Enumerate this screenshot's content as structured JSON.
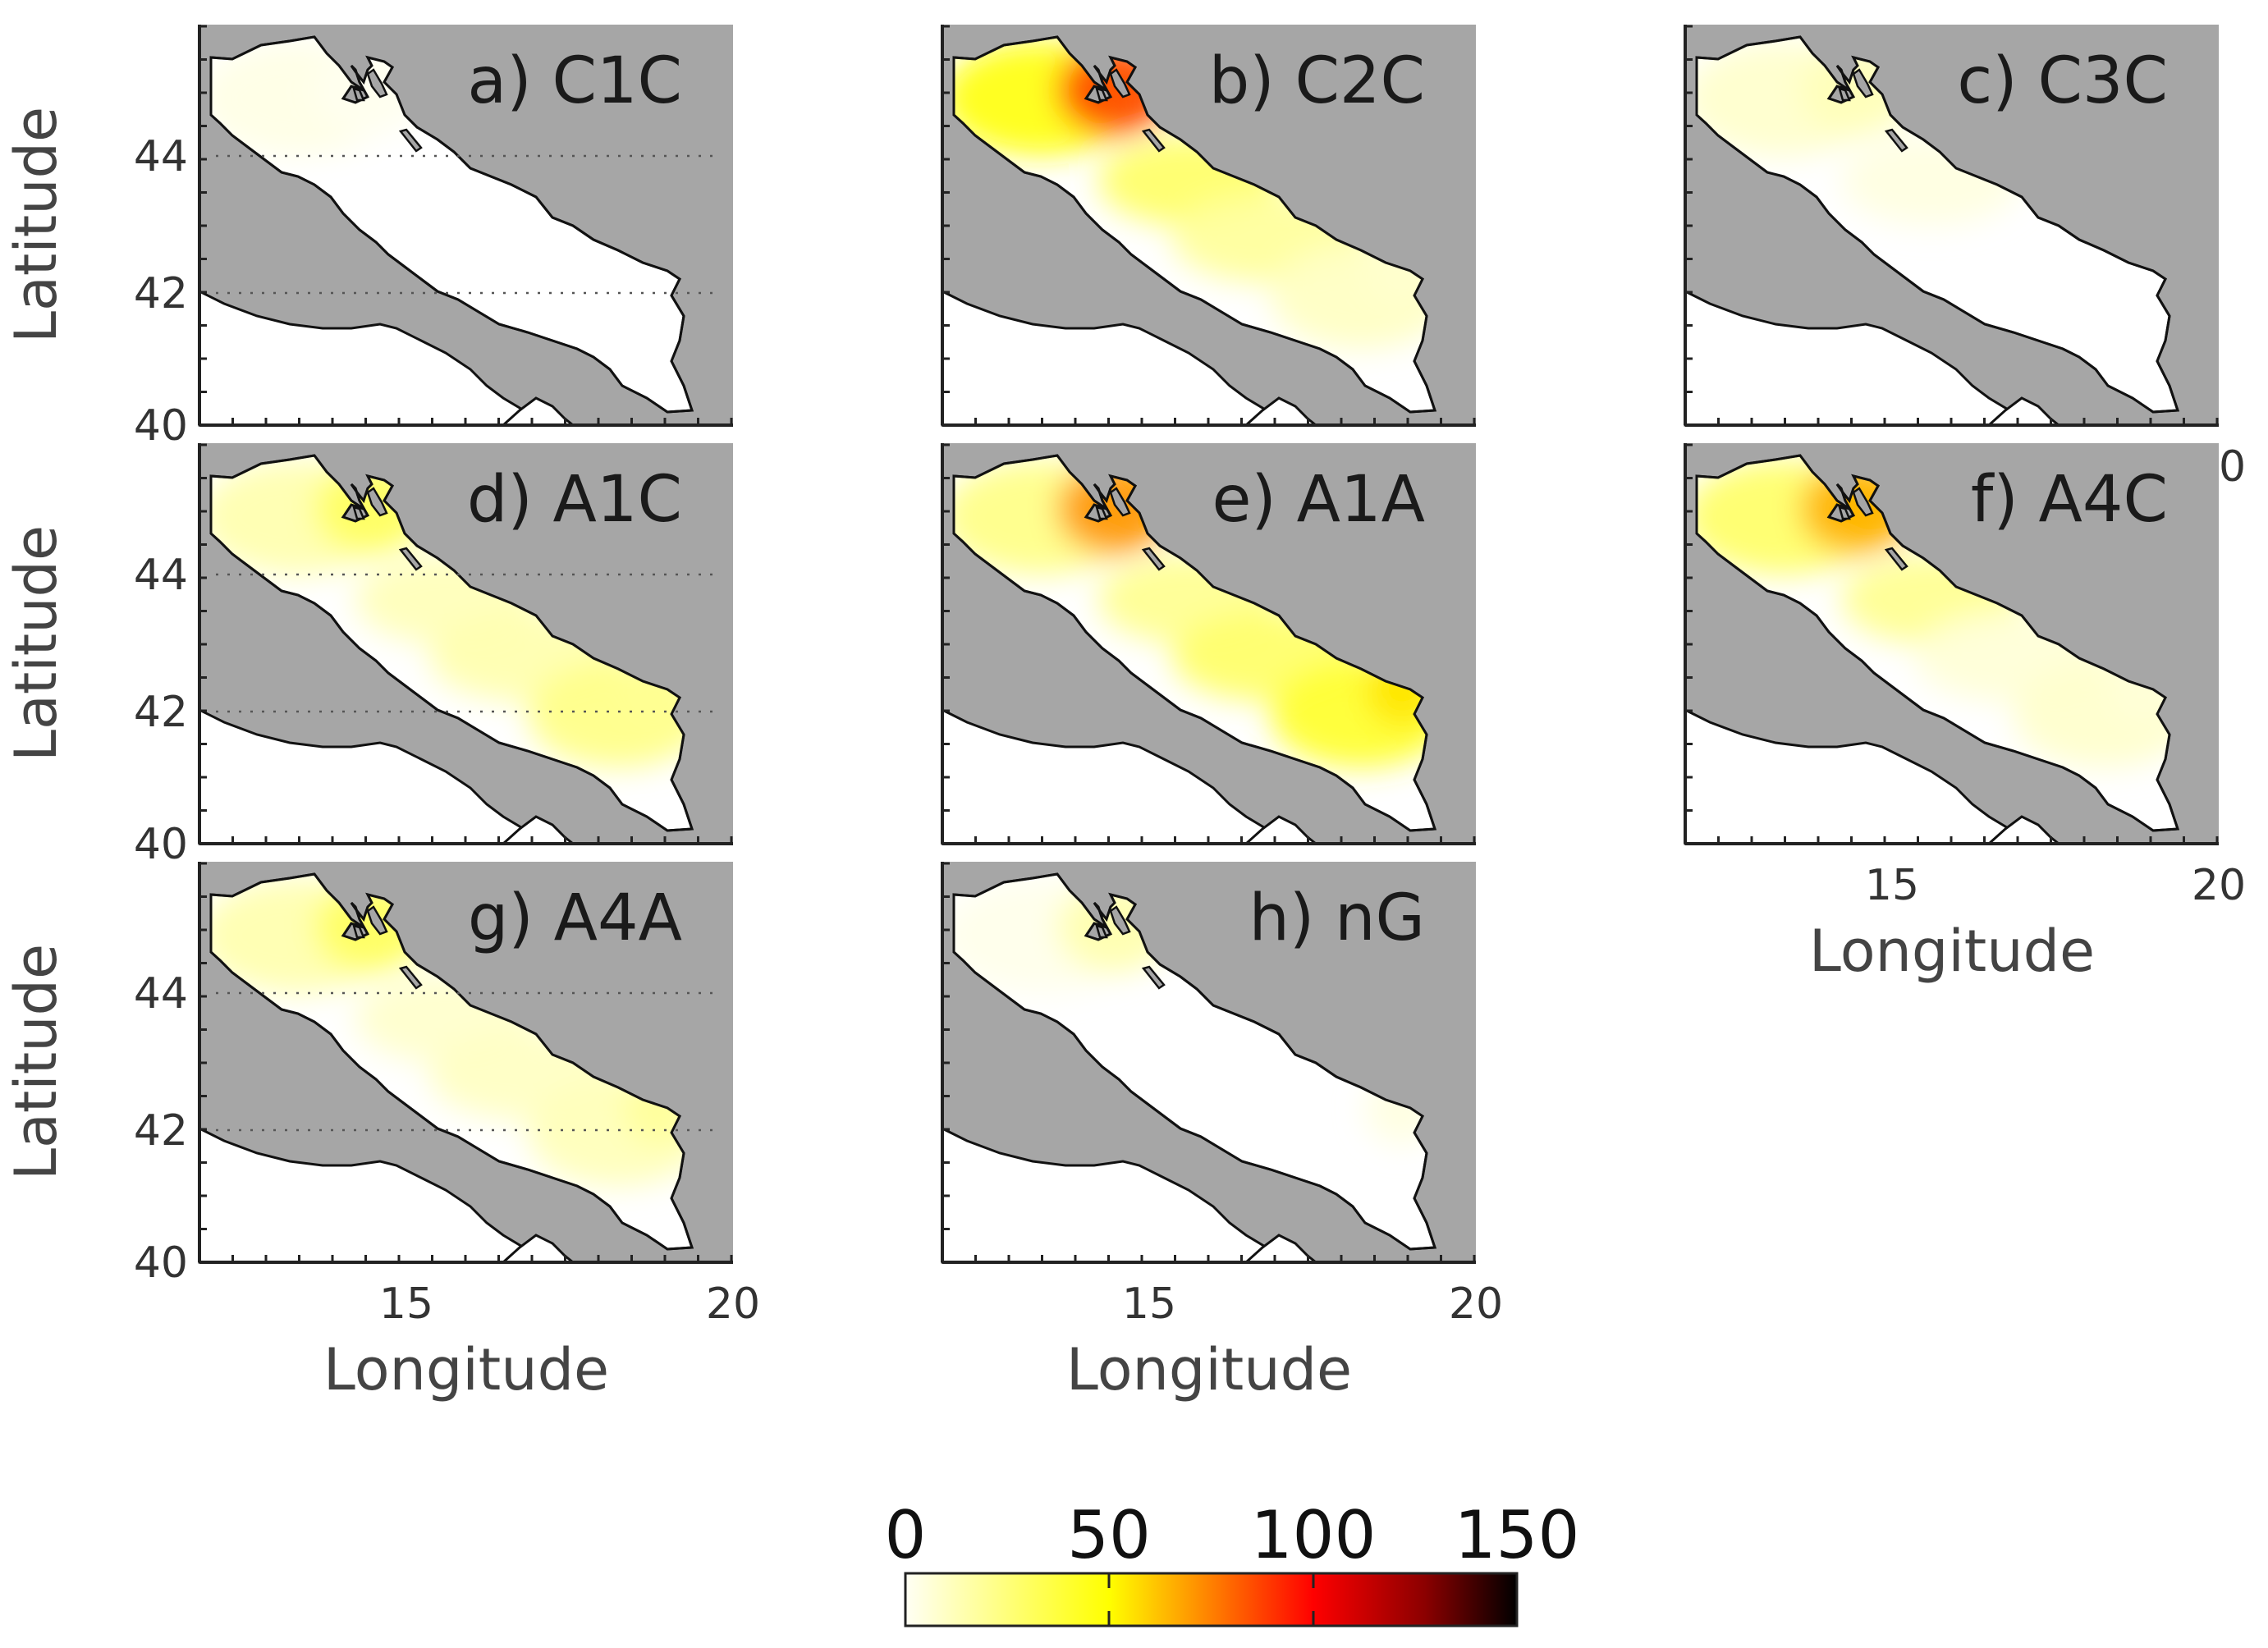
{
  "figure": {
    "panels": [
      {
        "id": "a",
        "label": "a) C1C",
        "intensity": [
          3,
          1,
          0,
          0,
          0,
          0
        ]
      },
      {
        "id": "b",
        "label": "b) C2C",
        "intensity": [
          45,
          85,
          28,
          18,
          10,
          8
        ]
      },
      {
        "id": "c",
        "label": "c) C3C",
        "intensity": [
          8,
          12,
          4,
          0,
          0,
          0
        ]
      },
      {
        "id": "d",
        "label": "d) A1C",
        "intensity": [
          14,
          30,
          12,
          14,
          22,
          20
        ]
      },
      {
        "id": "e",
        "label": "e) A1A",
        "intensity": [
          22,
          70,
          20,
          28,
          40,
          55
        ]
      },
      {
        "id": "f",
        "label": "f) A4C",
        "intensity": [
          28,
          65,
          20,
          6,
          8,
          6
        ]
      },
      {
        "id": "g",
        "label": "g) A4A",
        "intensity": [
          14,
          30,
          8,
          10,
          12,
          18
        ]
      },
      {
        "id": "h",
        "label": "h) nG",
        "intensity": [
          2,
          14,
          0,
          0,
          0,
          4
        ]
      }
    ],
    "axes": {
      "ylabel": "Latitude",
      "xlabel": "Longitude",
      "yticks": [
        "40",
        "42",
        "44"
      ],
      "xticks": [
        "15",
        "20"
      ]
    },
    "colorbar": {
      "ticks": [
        "0",
        "50",
        "100",
        "150"
      ],
      "range": [
        0,
        150
      ],
      "colors": [
        "#fffff5",
        "#ffff00",
        "#ff8000",
        "#ff0000",
        "#000000"
      ]
    },
    "map_colors": {
      "sea": "#ffffff",
      "land": "#a6a6a6"
    }
  },
  "chart_data": {
    "type": "heatmap",
    "xlabel": "Longitude",
    "ylabel": "Latitude",
    "xlim": [
      12.4,
      20
    ],
    "ylim": [
      40,
      46
    ],
    "xticks": [
      15,
      20
    ],
    "yticks": [
      40,
      42,
      44
    ],
    "colorbar_range": [
      0,
      150
    ]
  }
}
